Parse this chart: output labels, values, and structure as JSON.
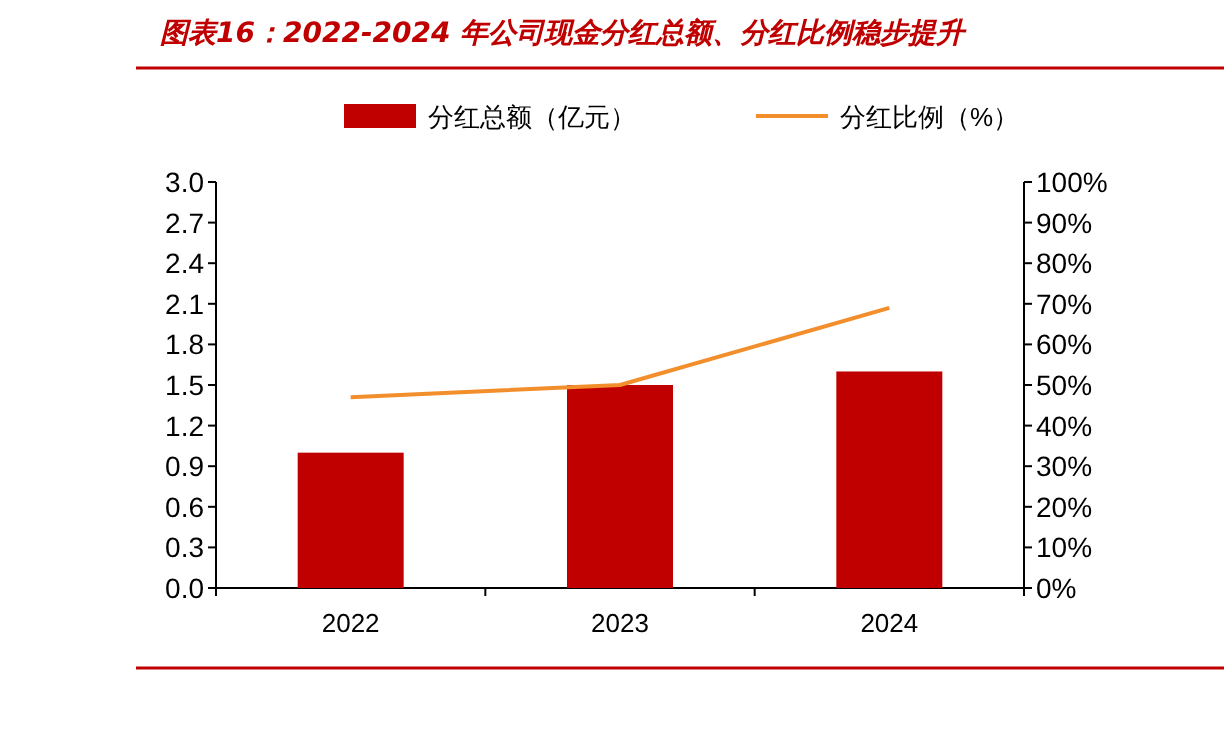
{
  "chart_data": {
    "type": "bar",
    "title": "图表16：2022-2024 年公司现金分红总额、分红比例稳步提升",
    "categories": [
      "2022",
      "2023",
      "2024"
    ],
    "series": [
      {
        "name": "分红总额（亿元）",
        "color": "#c00000",
        "values": [
          1.0,
          1.5,
          1.6
        ]
      },
      {
        "name": "分红比例（%）",
        "type": "line",
        "axis": "y2",
        "color": "#f28e2b",
        "values": [
          47,
          50,
          69
        ]
      }
    ],
    "ylim": [
      0,
      3
    ],
    "yticks": [
      {
        "value": 0,
        "label": "0.0"
      },
      {
        "value": 0.3,
        "label": "0.3"
      },
      {
        "value": 0.6,
        "label": "0.6"
      },
      {
        "value": 0.9,
        "label": "0.9"
      },
      {
        "value": 1.2,
        "label": "1.2"
      },
      {
        "value": 1.5,
        "label": "1.5"
      },
      {
        "value": 1.8,
        "label": "1.8"
      },
      {
        "value": 2.1,
        "label": "2.1"
      },
      {
        "value": 2.4,
        "label": "2.4"
      },
      {
        "value": 2.7,
        "label": "2.7"
      },
      {
        "value": 3.0,
        "label": "3.0"
      }
    ],
    "y2lim": [
      0,
      100
    ],
    "y2ticks": [
      {
        "value": 0,
        "label": "0%"
      },
      {
        "value": 10,
        "label": "10%"
      },
      {
        "value": 20,
        "label": "20%"
      },
      {
        "value": 30,
        "label": "30%"
      },
      {
        "value": 40,
        "label": "40%"
      },
      {
        "value": 50,
        "label": "50%"
      },
      {
        "value": 60,
        "label": "60%"
      },
      {
        "value": 70,
        "label": "70%"
      },
      {
        "value": 80,
        "label": "80%"
      },
      {
        "value": 90,
        "label": "90%"
      },
      {
        "value": 100,
        "label": "100%"
      }
    ],
    "legend": "top",
    "grid": false
  }
}
